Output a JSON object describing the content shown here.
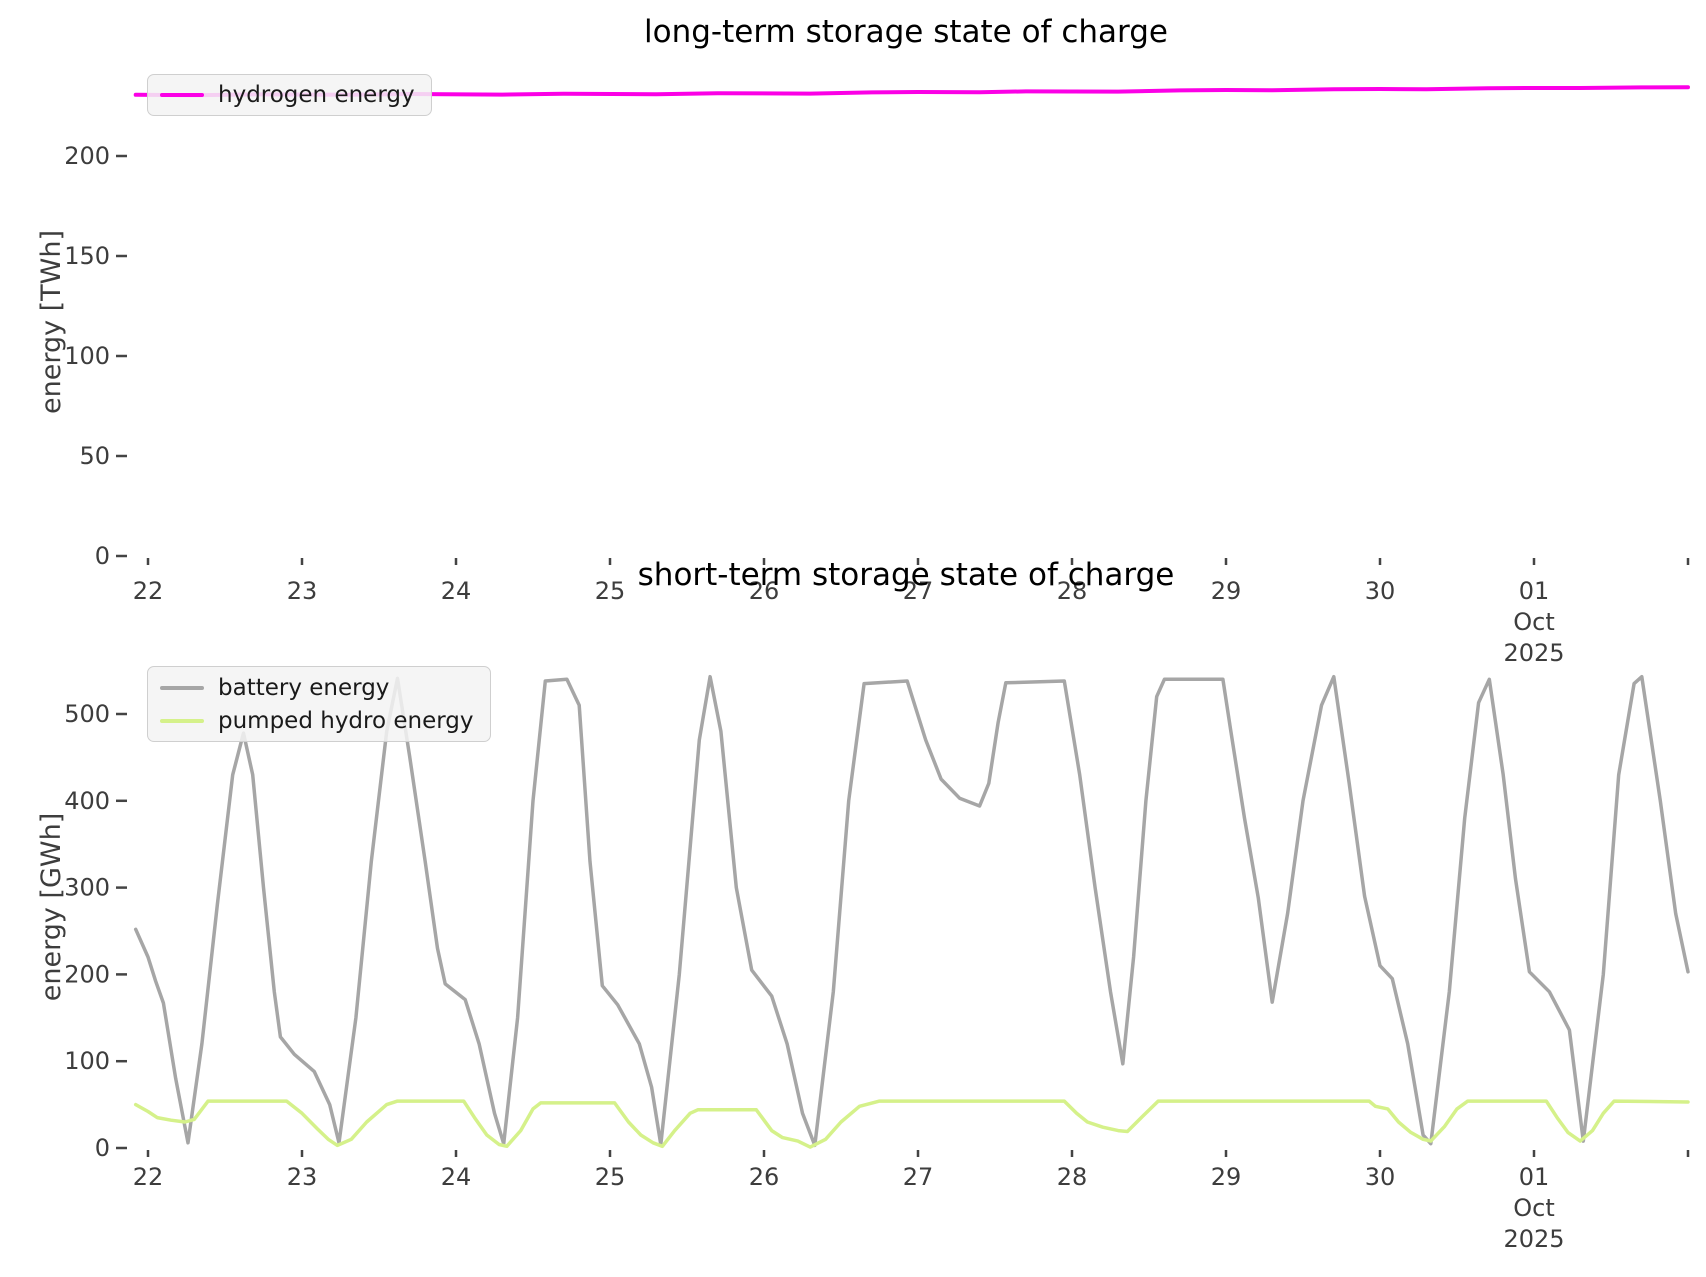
{
  "page": {
    "background": "#ffffff"
  },
  "chart_data": [
    {
      "type": "line",
      "title": "long-term storage state of charge",
      "ylabel": "energy [TWh]",
      "xlabel": "",
      "ylim": [
        0,
        240
      ],
      "xlim_days": [
        21.83,
        32.03
      ],
      "grid": false,
      "legend_position": "upper left",
      "yticks": [
        0,
        50,
        100,
        150,
        200
      ],
      "xticks": [
        {
          "day": 22,
          "label": "22"
        },
        {
          "day": 23,
          "label": "23"
        },
        {
          "day": 24,
          "label": "24"
        },
        {
          "day": 25,
          "label": "25"
        },
        {
          "day": 26,
          "label": "26"
        },
        {
          "day": 27,
          "label": "27"
        },
        {
          "day": 28,
          "label": "28"
        },
        {
          "day": 29,
          "label": "29"
        },
        {
          "day": 30,
          "label": "30"
        },
        {
          "day": 31,
          "label": "01",
          "sub": [
            "Oct",
            "2025"
          ]
        },
        {
          "day": 32,
          "label": ""
        }
      ],
      "legend": [
        {
          "label": "hydrogen energy",
          "color": "#fb00e6"
        }
      ],
      "series": [
        {
          "name": "hydrogen energy",
          "color": "#fb00e6",
          "width": 4,
          "unit": "TWh",
          "points": [
            [
              21.92,
              230.6
            ],
            [
              22.3,
              230.4
            ],
            [
              22.7,
              230.8
            ],
            [
              23.3,
              230.6
            ],
            [
              23.7,
              231.0
            ],
            [
              24.3,
              230.7
            ],
            [
              24.7,
              231.1
            ],
            [
              25.3,
              230.9
            ],
            [
              25.7,
              231.4
            ],
            [
              26.3,
              231.2
            ],
            [
              26.7,
              231.8
            ],
            [
              27.0,
              232.0
            ],
            [
              27.4,
              231.9
            ],
            [
              27.7,
              232.3
            ],
            [
              28.3,
              232.2
            ],
            [
              28.7,
              232.8
            ],
            [
              29.0,
              233.0
            ],
            [
              29.3,
              232.9
            ],
            [
              29.7,
              233.4
            ],
            [
              30.0,
              233.5
            ],
            [
              30.3,
              233.4
            ],
            [
              30.7,
              233.9
            ],
            [
              31.0,
              234.0
            ],
            [
              31.3,
              234.0
            ],
            [
              31.7,
              234.3
            ],
            [
              32.0,
              234.4
            ]
          ]
        }
      ]
    },
    {
      "type": "line",
      "title": "short-term storage state of charge",
      "ylabel": "energy [GWh]",
      "xlabel": "",
      "ylim": [
        0,
        572
      ],
      "xlim_days": [
        21.83,
        32.03
      ],
      "grid": false,
      "legend_position": "upper left",
      "yticks": [
        0,
        100,
        200,
        300,
        400,
        500
      ],
      "xticks": [
        {
          "day": 22,
          "label": "22"
        },
        {
          "day": 23,
          "label": "23"
        },
        {
          "day": 24,
          "label": "24"
        },
        {
          "day": 25,
          "label": "25"
        },
        {
          "day": 26,
          "label": "26"
        },
        {
          "day": 27,
          "label": "27"
        },
        {
          "day": 28,
          "label": "28"
        },
        {
          "day": 29,
          "label": "29"
        },
        {
          "day": 30,
          "label": "30"
        },
        {
          "day": 31,
          "label": "01",
          "sub": [
            "Oct",
            "2025"
          ]
        },
        {
          "day": 32,
          "label": ""
        }
      ],
      "legend": [
        {
          "label": "battery energy",
          "color": "#a6a6a6"
        },
        {
          "label": "pumped hydro energy",
          "color": "#d5f18a"
        }
      ],
      "series": [
        {
          "name": "battery energy",
          "color": "#a6a6a6",
          "width": 3.5,
          "unit": "GWh",
          "points": [
            [
              21.92,
              252
            ],
            [
              22.0,
              220
            ],
            [
              22.05,
              192
            ],
            [
              22.1,
              167
            ],
            [
              22.18,
              80
            ],
            [
              22.26,
              6
            ],
            [
              22.35,
              120
            ],
            [
              22.45,
              280
            ],
            [
              22.55,
              430
            ],
            [
              22.62,
              478
            ],
            [
              22.68,
              430
            ],
            [
              22.75,
              300
            ],
            [
              22.82,
              180
            ],
            [
              22.86,
              128
            ],
            [
              22.95,
              108
            ],
            [
              23.08,
              88
            ],
            [
              23.18,
              50
            ],
            [
              23.24,
              6
            ],
            [
              23.35,
              150
            ],
            [
              23.45,
              330
            ],
            [
              23.55,
              480
            ],
            [
              23.62,
              541
            ],
            [
              23.7,
              450
            ],
            [
              23.8,
              330
            ],
            [
              23.88,
              230
            ],
            [
              23.93,
              189
            ],
            [
              24.06,
              171
            ],
            [
              24.15,
              120
            ],
            [
              24.25,
              40
            ],
            [
              24.31,
              5
            ],
            [
              24.4,
              150
            ],
            [
              24.5,
              400
            ],
            [
              24.58,
              538
            ],
            [
              24.72,
              540
            ],
            [
              24.8,
              510
            ],
            [
              24.87,
              330
            ],
            [
              24.95,
              187
            ],
            [
              25.05,
              165
            ],
            [
              25.19,
              120
            ],
            [
              25.27,
              70
            ],
            [
              25.33,
              4
            ],
            [
              25.45,
              200
            ],
            [
              25.58,
              470
            ],
            [
              25.65,
              543
            ],
            [
              25.72,
              480
            ],
            [
              25.82,
              300
            ],
            [
              25.92,
              205
            ],
            [
              26.05,
              175
            ],
            [
              26.15,
              120
            ],
            [
              26.25,
              40
            ],
            [
              26.33,
              3
            ],
            [
              26.45,
              180
            ],
            [
              26.55,
              400
            ],
            [
              26.65,
              535
            ],
            [
              26.93,
              538
            ],
            [
              27.05,
              470
            ],
            [
              27.15,
              425
            ],
            [
              27.27,
              403
            ],
            [
              27.4,
              394
            ],
            [
              27.46,
              420
            ],
            [
              27.52,
              490
            ],
            [
              27.57,
              536
            ],
            [
              27.95,
              538
            ],
            [
              28.05,
              430
            ],
            [
              28.15,
              300
            ],
            [
              28.25,
              180
            ],
            [
              28.33,
              97
            ],
            [
              28.4,
              220
            ],
            [
              28.48,
              400
            ],
            [
              28.55,
              520
            ],
            [
              28.6,
              540
            ],
            [
              28.98,
              540
            ],
            [
              29.03,
              482
            ],
            [
              29.12,
              380
            ],
            [
              29.21,
              288
            ],
            [
              29.3,
              168
            ],
            [
              29.4,
              270
            ],
            [
              29.5,
              400
            ],
            [
              29.62,
              510
            ],
            [
              29.7,
              543
            ],
            [
              29.8,
              420
            ],
            [
              29.9,
              290
            ],
            [
              30.0,
              210
            ],
            [
              30.08,
              195
            ],
            [
              30.18,
              120
            ],
            [
              30.28,
              15
            ],
            [
              30.33,
              5
            ],
            [
              30.45,
              180
            ],
            [
              30.55,
              380
            ],
            [
              30.64,
              513
            ],
            [
              30.71,
              540
            ],
            [
              30.8,
              430
            ],
            [
              30.88,
              310
            ],
            [
              30.97,
              203
            ],
            [
              31.1,
              180
            ],
            [
              31.23,
              136
            ],
            [
              31.32,
              8
            ],
            [
              31.45,
              200
            ],
            [
              31.55,
              430
            ],
            [
              31.65,
              535
            ],
            [
              31.7,
              543
            ],
            [
              31.82,
              400
            ],
            [
              31.92,
              270
            ],
            [
              32.0,
              203
            ]
          ]
        },
        {
          "name": "pumped hydro energy",
          "color": "#d5f18a",
          "width": 3.5,
          "unit": "GWh",
          "points": [
            [
              21.92,
              50
            ],
            [
              22.0,
              42
            ],
            [
              22.06,
              35
            ],
            [
              22.15,
              32
            ],
            [
              22.24,
              30
            ],
            [
              22.3,
              33
            ],
            [
              22.39,
              54
            ],
            [
              22.9,
              54
            ],
            [
              23.0,
              40
            ],
            [
              23.1,
              22
            ],
            [
              23.17,
              10
            ],
            [
              23.23,
              3
            ],
            [
              23.32,
              10
            ],
            [
              23.42,
              30
            ],
            [
              23.55,
              50
            ],
            [
              23.62,
              54
            ],
            [
              24.05,
              54
            ],
            [
              24.12,
              35
            ],
            [
              24.2,
              15
            ],
            [
              24.28,
              4
            ],
            [
              24.33,
              2
            ],
            [
              24.42,
              20
            ],
            [
              24.5,
              45
            ],
            [
              24.55,
              52
            ],
            [
              25.03,
              52
            ],
            [
              25.12,
              30
            ],
            [
              25.2,
              15
            ],
            [
              25.28,
              6
            ],
            [
              25.34,
              2
            ],
            [
              25.42,
              20
            ],
            [
              25.52,
              40
            ],
            [
              25.57,
              44
            ],
            [
              25.95,
              44
            ],
            [
              26.05,
              20
            ],
            [
              26.12,
              12
            ],
            [
              26.22,
              8
            ],
            [
              26.3,
              1
            ],
            [
              26.4,
              10
            ],
            [
              26.5,
              30
            ],
            [
              26.62,
              48
            ],
            [
              26.75,
              54
            ],
            [
              27.95,
              54
            ],
            [
              28.03,
              40
            ],
            [
              28.1,
              30
            ],
            [
              28.2,
              24
            ],
            [
              28.3,
              20
            ],
            [
              28.36,
              19
            ],
            [
              28.45,
              35
            ],
            [
              28.56,
              54
            ],
            [
              29.93,
              54
            ],
            [
              29.97,
              48
            ],
            [
              30.05,
              45
            ],
            [
              30.12,
              30
            ],
            [
              30.2,
              18
            ],
            [
              30.28,
              10
            ],
            [
              30.33,
              8
            ],
            [
              30.42,
              25
            ],
            [
              30.5,
              45
            ],
            [
              30.57,
              54
            ],
            [
              31.08,
              54
            ],
            [
              31.15,
              35
            ],
            [
              31.22,
              18
            ],
            [
              31.3,
              8
            ],
            [
              31.38,
              20
            ],
            [
              31.45,
              40
            ],
            [
              31.52,
              54
            ],
            [
              32.0,
              53
            ]
          ]
        }
      ]
    }
  ]
}
